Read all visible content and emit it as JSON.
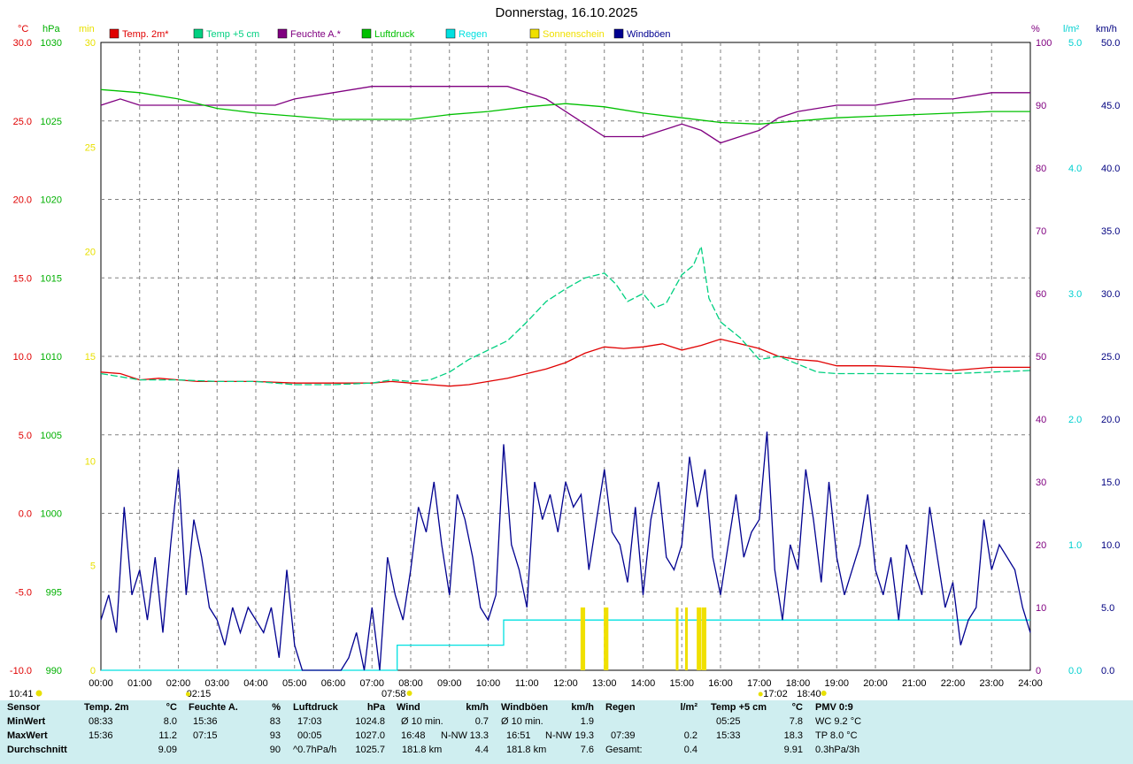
{
  "title": "Donnerstag, 16.10.2025",
  "axes_labels": {
    "temp": "°C",
    "pressure": "hPa",
    "sun": "min",
    "humidity": "%",
    "rain": "l/m²",
    "wind": "km/h"
  },
  "legend": [
    {
      "label": "Temp. 2m*",
      "color": "#e00000"
    },
    {
      "label": "Temp +5 cm",
      "color": "#00d080"
    },
    {
      "label": "Feuchte A.*",
      "color": "#800080"
    },
    {
      "label": "Luftdruck",
      "color": "#00c000"
    },
    {
      "label": "Regen",
      "color": "#00e0e0"
    },
    {
      "label": "Sonnenschein",
      "color": "#f0e000"
    },
    {
      "label": "Windböen",
      "color": "#000090"
    }
  ],
  "time_labels": [
    "00:00",
    "01:00",
    "02:00",
    "03:00",
    "04:00",
    "05:00",
    "06:00",
    "07:00",
    "08:00",
    "09:00",
    "10:00",
    "11:00",
    "12:00",
    "13:00",
    "14:00",
    "15:00",
    "16:00",
    "17:00",
    "18:00",
    "19:00",
    "20:00",
    "21:00",
    "22:00",
    "23:00",
    "24:00"
  ],
  "markers": {
    "sunrise": "07:58",
    "sunset": "18:40",
    "moonrise": "02:15",
    "moonset": "17:02",
    "current": "10:41"
  },
  "chart_data": {
    "type": "line",
    "x_range": [
      "00:00",
      "24:00"
    ],
    "axes": {
      "temp_c": {
        "range": [
          -10,
          30
        ],
        "ticks": [
          "-10.0",
          "-5.0",
          "0.0",
          "5.0",
          "10.0",
          "15.0",
          "20.0",
          "25.0",
          "30.0"
        ]
      },
      "pressure_hpa": {
        "range": [
          990,
          1030
        ],
        "ticks": [
          "990",
          "995",
          "1000",
          "1005",
          "1010",
          "1015",
          "1020",
          "1025",
          "1030"
        ]
      },
      "sun_min": {
        "range": [
          0,
          30
        ],
        "ticks": [
          "0",
          "5",
          "10",
          "15",
          "20",
          "25",
          "30"
        ]
      },
      "humidity_pct": {
        "range": [
          0,
          100
        ],
        "ticks": [
          "0",
          "10",
          "20",
          "30",
          "40",
          "50",
          "60",
          "70",
          "80",
          "90",
          "100"
        ]
      },
      "rain_lm2": {
        "range": [
          0,
          5
        ],
        "ticks": [
          "0.0",
          "1.0",
          "2.0",
          "3.0",
          "4.0",
          "5.0"
        ]
      },
      "wind_kmh": {
        "range": [
          0,
          50
        ],
        "ticks": [
          "0.0",
          "5.0",
          "10.0",
          "15.0",
          "20.0",
          "25.0",
          "30.0",
          "35.0",
          "40.0",
          "45.0",
          "50.0"
        ]
      }
    },
    "grid": true,
    "series": [
      {
        "name": "Temp. 2m*",
        "axis": "temp_c",
        "color": "#e00000",
        "x": [
          0,
          0.5,
          1,
          1.5,
          2,
          2.5,
          3,
          4,
          5,
          6,
          7,
          7.5,
          8,
          8.5,
          9,
          9.5,
          10,
          10.5,
          11,
          11.5,
          12,
          12.5,
          13,
          13.5,
          14,
          14.5,
          15,
          15.5,
          16,
          16.5,
          17,
          17.5,
          18,
          18.5,
          19,
          20,
          21,
          22,
          23,
          24
        ],
        "y": [
          9.0,
          8.9,
          8.5,
          8.6,
          8.5,
          8.4,
          8.4,
          8.4,
          8.3,
          8.3,
          8.3,
          8.4,
          8.3,
          8.2,
          8.1,
          8.2,
          8.4,
          8.6,
          8.9,
          9.2,
          9.6,
          10.2,
          10.6,
          10.5,
          10.6,
          10.8,
          10.4,
          10.7,
          11.1,
          10.8,
          10.5,
          10.0,
          9.8,
          9.7,
          9.4,
          9.4,
          9.3,
          9.1,
          9.3,
          9.3
        ]
      },
      {
        "name": "Temp +5 cm",
        "axis": "temp_c",
        "color": "#00d080",
        "x": [
          0,
          1,
          2,
          3,
          4,
          5,
          6,
          7,
          7.5,
          8,
          8.5,
          9,
          9.5,
          10,
          10.5,
          11,
          11.5,
          12,
          12.5,
          13,
          13.3,
          13.6,
          14,
          14.3,
          14.6,
          15,
          15.3,
          15.5,
          15.7,
          16,
          16.5,
          17,
          17.5,
          18,
          18.5,
          19,
          20,
          21,
          22,
          23,
          24
        ],
        "y": [
          8.9,
          8.5,
          8.5,
          8.4,
          8.4,
          8.2,
          8.2,
          8.3,
          8.5,
          8.4,
          8.5,
          9.0,
          9.8,
          10.4,
          11.0,
          12.2,
          13.5,
          14.3,
          15.0,
          15.3,
          14.6,
          13.5,
          14.0,
          13.1,
          13.4,
          15.2,
          15.8,
          17.0,
          13.7,
          12.2,
          11.2,
          9.8,
          10.0,
          9.5,
          9.0,
          8.9,
          8.9,
          8.9,
          8.9,
          9.0,
          9.1
        ]
      },
      {
        "name": "Feuchte A.*",
        "axis": "humidity_pct",
        "color": "#800080",
        "x": [
          0,
          0.5,
          1,
          2,
          3,
          4,
          4.5,
          5,
          6,
          7,
          7.5,
          8,
          9,
          10,
          10.5,
          11,
          11.5,
          12,
          12.5,
          13,
          13.5,
          14,
          14.5,
          15,
          15.5,
          16,
          16.5,
          17,
          17.5,
          18,
          19,
          20,
          21,
          22,
          23,
          24
        ],
        "y": [
          90,
          91,
          90,
          90,
          90,
          90,
          90,
          91,
          92,
          93,
          93,
          93,
          93,
          93,
          93,
          92,
          91,
          89,
          87,
          85,
          85,
          85,
          86,
          87,
          86,
          84,
          85,
          86,
          88,
          89,
          90,
          90,
          91,
          91,
          92,
          92
        ]
      },
      {
        "name": "Luftdruck",
        "axis": "pressure_hpa",
        "color": "#00c000",
        "x": [
          0,
          1,
          2,
          3,
          4,
          5,
          6,
          7,
          8,
          9,
          10,
          11,
          12,
          13,
          14,
          15,
          16,
          17,
          18,
          19,
          20,
          21,
          22,
          23,
          24
        ],
        "y": [
          1027.0,
          1026.8,
          1026.4,
          1025.8,
          1025.5,
          1025.3,
          1025.1,
          1025.1,
          1025.1,
          1025.4,
          1025.6,
          1025.9,
          1026.1,
          1025.9,
          1025.5,
          1025.2,
          1024.9,
          1024.8,
          1025.0,
          1025.2,
          1025.3,
          1025.4,
          1025.5,
          1025.6,
          1025.6
        ]
      },
      {
        "name": "Regen",
        "axis": "rain_lm2",
        "color": "#00e0e0",
        "x": [
          0,
          7.65,
          7.65,
          10.4,
          10.4,
          24
        ],
        "y": [
          0,
          0,
          0.2,
          0.2,
          0.4,
          0.4
        ]
      },
      {
        "name": "Sonnenschein",
        "axis": "sun_min",
        "color": "#f0e000",
        "type": "bar",
        "x": [
          12.42,
          12.47,
          13.02,
          13.07,
          14.88,
          15.12,
          15.42,
          15.47,
          15.55,
          15.6
        ],
        "y": [
          3,
          3,
          3,
          3,
          3,
          3,
          3,
          3,
          3,
          3
        ]
      },
      {
        "name": "Windböen",
        "axis": "wind_kmh",
        "color": "#000090",
        "x": [
          0,
          0.2,
          0.4,
          0.6,
          0.8,
          1.0,
          1.2,
          1.4,
          1.6,
          1.8,
          2.0,
          2.2,
          2.4,
          2.6,
          2.8,
          3.0,
          3.2,
          3.4,
          3.6,
          3.8,
          4.0,
          4.2,
          4.4,
          4.6,
          4.8,
          5.0,
          5.2,
          5.4,
          5.6,
          5.8,
          6.0,
          6.2,
          6.4,
          6.6,
          6.8,
          7.0,
          7.2,
          7.4,
          7.6,
          7.8,
          8.0,
          8.2,
          8.4,
          8.6,
          8.8,
          9.0,
          9.2,
          9.4,
          9.6,
          9.8,
          10.0,
          10.2,
          10.4,
          10.6,
          10.8,
          11.0,
          11.2,
          11.4,
          11.6,
          11.8,
          12.0,
          12.2,
          12.4,
          12.6,
          12.8,
          13.0,
          13.2,
          13.4,
          13.6,
          13.8,
          14.0,
          14.2,
          14.4,
          14.6,
          14.8,
          15.0,
          15.2,
          15.4,
          15.6,
          15.8,
          16.0,
          16.2,
          16.4,
          16.6,
          16.8,
          17.0,
          17.2,
          17.4,
          17.6,
          17.8,
          18.0,
          18.2,
          18.4,
          18.6,
          18.8,
          19.0,
          19.2,
          19.4,
          19.6,
          19.8,
          20.0,
          20.2,
          20.4,
          20.6,
          20.8,
          21.0,
          21.2,
          21.4,
          21.6,
          21.8,
          22.0,
          22.2,
          22.4,
          22.6,
          22.8,
          23.0,
          23.2,
          23.4,
          23.6,
          23.8,
          24.0
        ],
        "y": [
          4,
          6,
          3,
          13,
          6,
          8,
          4,
          9,
          3,
          10,
          16,
          6,
          12,
          9,
          5,
          4,
          2,
          5,
          3,
          5,
          4,
          3,
          5,
          1,
          8,
          2,
          0,
          0,
          0,
          0,
          0,
          0,
          1,
          3,
          0,
          5,
          0,
          9,
          6,
          4,
          8,
          13,
          11,
          15,
          10,
          6,
          14,
          12,
          9,
          5,
          4,
          6,
          18,
          10,
          8,
          5,
          15,
          12,
          14,
          11,
          15,
          13,
          14,
          8,
          12,
          16,
          11,
          10,
          7,
          13,
          6,
          12,
          15,
          9,
          8,
          10,
          17,
          13,
          16,
          9,
          6,
          10,
          14,
          9,
          11,
          12,
          19,
          8,
          4,
          10,
          8,
          16,
          12,
          7,
          15,
          9,
          6,
          8,
          10,
          14,
          8,
          6,
          9,
          4,
          10,
          8,
          6,
          13,
          9,
          5,
          7,
          2,
          4,
          5,
          12,
          8,
          10,
          9,
          8,
          5,
          3
        ]
      }
    ]
  },
  "stats": {
    "sensor": {
      "header": "Sensor",
      "rows": [
        "MinWert",
        "MaxWert",
        "Durchschnitt"
      ]
    },
    "temp2m": {
      "header": "Temp. 2m",
      "unit": "°C",
      "min_time": "08:33",
      "min": "8.0",
      "max_time": "15:36",
      "max": "11.2",
      "avg": "9.09"
    },
    "humidity": {
      "header": "Feuchte A.",
      "unit": "%",
      "min_time": "15:36",
      "min": "83",
      "max_time": "07:15",
      "max": "93",
      "avg": "90"
    },
    "pressure": {
      "header": "Luftdruck",
      "unit": "hPa",
      "min_time": "17:03",
      "min": "1024.8",
      "max_time": "00:05",
      "max": "1027.0",
      "trend": "^0.7hPa/h",
      "avg": "1025.7"
    },
    "wind": {
      "header": "Wind",
      "unit": "km/h",
      "r1_label": "Ø 10 min.",
      "r1_val": "0.7",
      "r2_time": "16:48",
      "r2_dir": "N-NW",
      "r2_val": "13.3",
      "r3_label": "181.8 km",
      "r3_val": "4.4"
    },
    "gusts": {
      "header": "Windböen",
      "unit": "km/h",
      "r1_label": "Ø 10 min.",
      "r1_val": "1.9",
      "r2_time": "16:51",
      "r2_dir": "N-NW",
      "r2_val": "19.3",
      "r3_label": "181.8 km",
      "r3_val": "7.6"
    },
    "rain": {
      "header": "Regen",
      "unit": "l/m²",
      "r2_time": "07:39",
      "r2_val": "0.2",
      "r3_label": "Gesamt:",
      "r3_val": "0.4"
    },
    "temp5cm": {
      "header": "Temp +5 cm",
      "unit": "°C",
      "min_time": "05:25",
      "min": "7.8",
      "max_time": "15:33",
      "max": "18.3",
      "avg": "9.91"
    },
    "pmv": {
      "header": "PMV 0:9",
      "r1": "WC 9.2 °C",
      "r2": "TP 8.0 °C",
      "r3": "0.3hPa/3h"
    }
  }
}
